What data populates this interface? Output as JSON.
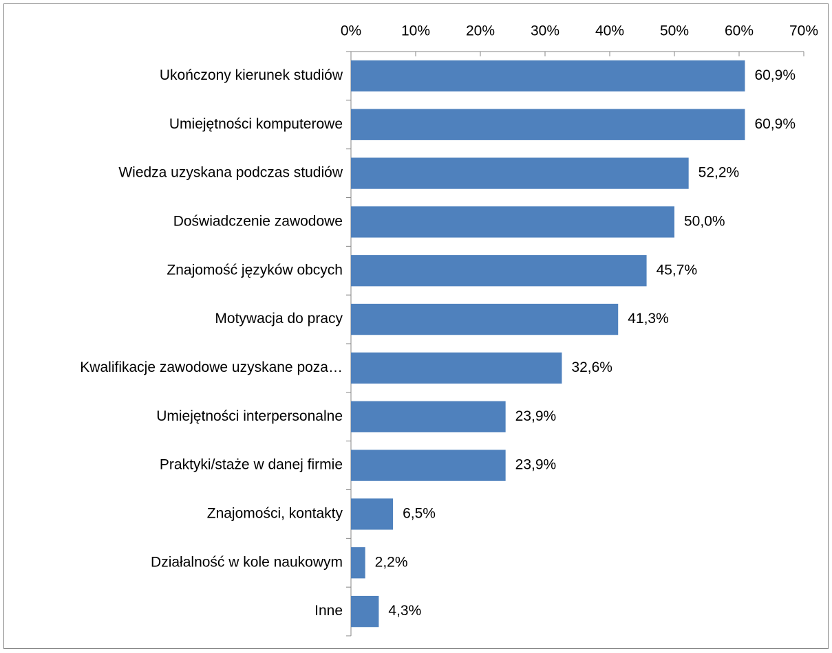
{
  "chart_data": {
    "type": "bar",
    "orientation": "horizontal",
    "categories": [
      "Ukończony kierunek studiów",
      "Umiejętności komputerowe",
      "Wiedza uzyskana podczas studiów",
      "Doświadczenie zawodowe",
      "Znajomość języków obcych",
      "Motywacja do pracy",
      "Kwalifikacje zawodowe uzyskane poza…",
      "Umiejętności interpersonalne",
      "Praktyki/staże w danej firmie",
      "Znajomości, kontakty",
      "Działalność w kole naukowym",
      "Inne"
    ],
    "values": [
      60.9,
      60.9,
      52.2,
      50.0,
      45.7,
      41.3,
      32.6,
      23.9,
      23.9,
      6.5,
      2.2,
      4.3
    ],
    "value_labels": [
      "60,9%",
      "60,9%",
      "52,2%",
      "50,0%",
      "45,7%",
      "41,3%",
      "32,6%",
      "23,9%",
      "23,9%",
      "6,5%",
      "2,2%",
      "4,3%"
    ],
    "color": "#4f81bd",
    "xlim": [
      0,
      70
    ],
    "xticks": [
      {
        "value": 0,
        "label": "0%"
      },
      {
        "value": 10,
        "label": "10%"
      },
      {
        "value": 20,
        "label": "20%"
      },
      {
        "value": 30,
        "label": "30%"
      },
      {
        "value": 40,
        "label": "40%"
      },
      {
        "value": 50,
        "label": "50%"
      },
      {
        "value": 60,
        "label": "60%"
      },
      {
        "value": 70,
        "label": "70%"
      }
    ],
    "grid": false
  }
}
